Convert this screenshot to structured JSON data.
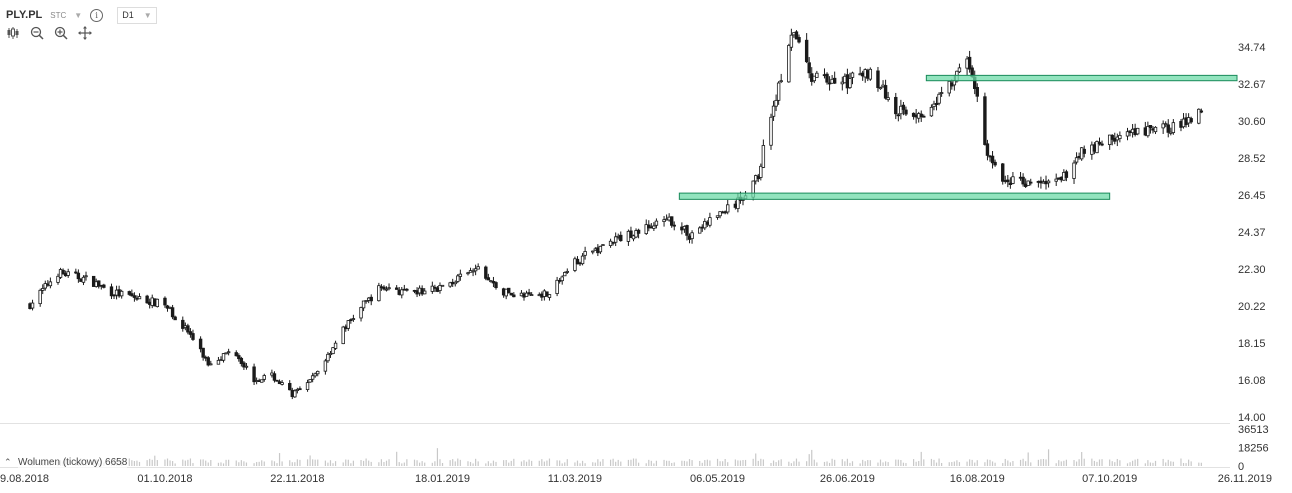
{
  "header": {
    "symbol": "PLY.PL",
    "data_type": "STC",
    "timeframe": "D1",
    "icons": [
      "dropdown-caret-icon",
      "info-icon",
      "candlestick-icon",
      "zoom-out-icon",
      "zoom-in-icon",
      "crosshair-icon"
    ]
  },
  "volume": {
    "label": "Wolumen (tickowy) 6658",
    "ticks": [
      "36513",
      "18256",
      "0"
    ]
  },
  "colors": {
    "zone": "#6ddba8",
    "zone_border": "#1a8a5a",
    "candle": "#1a1a1a",
    "volume": "#c8c8c8",
    "axis_text": "#333333"
  },
  "chart_data": {
    "type": "candlestick",
    "price_ticks": [
      "34.74",
      "32.67",
      "30.60",
      "28.52",
      "26.45",
      "24.37",
      "22.30",
      "20.22",
      "18.15",
      "16.08",
      "14.00"
    ],
    "ylim": [
      14.0,
      36.0
    ],
    "date_ticks": [
      "9.08.2018",
      "01.10.2018",
      "22.11.2018",
      "18.01.2019",
      "11.03.2019",
      "06.05.2019",
      "26.06.2019",
      "16.08.2019",
      "07.10.2019",
      "26.11.2019"
    ],
    "xlim": [
      "2018-08-09",
      "2019-11-26"
    ],
    "zones": [
      {
        "from": "2019-04-21",
        "to": "2019-10-07",
        "low": 26.2,
        "high": 26.55
      },
      {
        "from": "2019-07-27",
        "to": "2019-11-26",
        "low": 32.85,
        "high": 33.15
      }
    ],
    "close_path": [
      [
        "2018-08-09",
        20.3
      ],
      [
        "2018-08-20",
        22.1
      ],
      [
        "2018-09-01",
        21.7
      ],
      [
        "2018-09-10",
        21.0
      ],
      [
        "2018-09-25",
        20.5
      ],
      [
        "2018-10-01",
        20.3
      ],
      [
        "2018-10-10",
        18.8
      ],
      [
        "2018-10-18",
        17.0
      ],
      [
        "2018-10-28",
        17.8
      ],
      [
        "2018-11-05",
        16.1
      ],
      [
        "2018-11-12",
        16.3
      ],
      [
        "2018-11-20",
        15.3
      ],
      [
        "2018-11-25",
        15.6
      ],
      [
        "2018-12-02",
        17.0
      ],
      [
        "2018-12-10",
        18.9
      ],
      [
        "2018-12-18",
        20.3
      ],
      [
        "2018-12-25",
        21.3
      ],
      [
        "2019-01-05",
        20.9
      ],
      [
        "2019-01-18",
        21.3
      ],
      [
        "2019-02-01",
        22.3
      ],
      [
        "2019-02-10",
        21.0
      ],
      [
        "2019-02-20",
        20.8
      ],
      [
        "2019-03-01",
        21.0
      ],
      [
        "2019-03-11",
        22.7
      ],
      [
        "2019-03-18",
        23.3
      ],
      [
        "2019-03-28",
        24.0
      ],
      [
        "2019-04-08",
        24.6
      ],
      [
        "2019-04-18",
        25.0
      ],
      [
        "2019-04-25",
        24.2
      ],
      [
        "2019-05-06",
        25.3
      ],
      [
        "2019-05-14",
        26.0
      ],
      [
        "2019-05-22",
        27.5
      ],
      [
        "2019-05-26",
        30.5
      ],
      [
        "2019-06-01",
        33.5
      ],
      [
        "2019-06-05",
        35.6
      ],
      [
        "2019-06-12",
        33.0
      ],
      [
        "2019-06-26",
        32.8
      ],
      [
        "2019-07-05",
        33.4
      ],
      [
        "2019-07-15",
        31.2
      ],
      [
        "2019-07-25",
        31.0
      ],
      [
        "2019-08-05",
        32.5
      ],
      [
        "2019-08-12",
        34.0
      ],
      [
        "2019-08-16",
        32.0
      ],
      [
        "2019-08-19",
        29.2
      ],
      [
        "2019-08-25",
        27.3
      ],
      [
        "2019-09-10",
        27.1
      ],
      [
        "2019-09-18",
        27.2
      ],
      [
        "2019-09-25",
        28.8
      ],
      [
        "2019-10-07",
        29.6
      ],
      [
        "2019-10-25",
        30.1
      ],
      [
        "2019-11-05",
        30.4
      ],
      [
        "2019-11-12",
        31.4
      ]
    ]
  }
}
